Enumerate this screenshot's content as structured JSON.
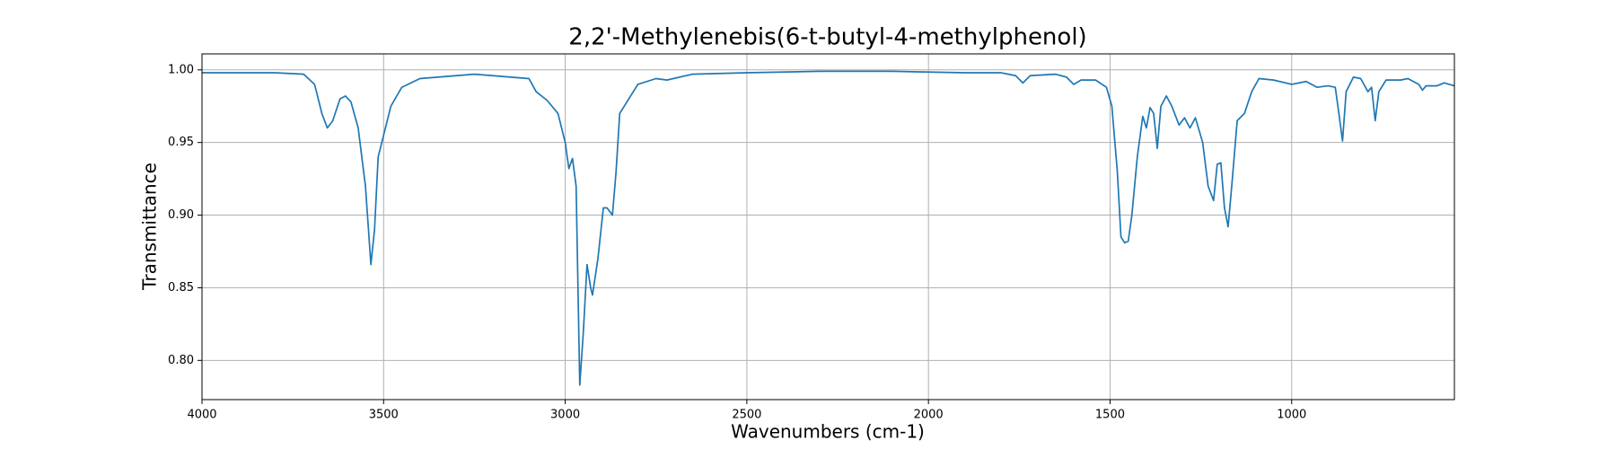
{
  "chart_data": {
    "type": "line",
    "title": "2,2'-Methylenebis(6-t-butyl-4-methylphenol)",
    "xlabel": "Wavenumbers (cm-1)",
    "ylabel": "Transmittance",
    "color": "#1f77b4",
    "grid": true,
    "xlim": [
      4000,
      552
    ],
    "ylim": [
      0.773,
      1.011
    ],
    "xticks": [
      4000,
      3500,
      3000,
      2500,
      2000,
      1500,
      1000
    ],
    "yticks": [
      {
        "value": 0.8,
        "label": "0.80"
      },
      {
        "value": 0.85,
        "label": "0.85"
      },
      {
        "value": 0.9,
        "label": "0.90"
      },
      {
        "value": 0.95,
        "label": "0.95"
      },
      {
        "value": 1.0,
        "label": "1.00"
      }
    ],
    "x": [
      4000,
      3800,
      3720,
      3690,
      3670,
      3655,
      3640,
      3620,
      3605,
      3590,
      3570,
      3550,
      3535,
      3525,
      3515,
      3500,
      3480,
      3450,
      3400,
      3300,
      3250,
      3150,
      3100,
      3080,
      3050,
      3020,
      3000,
      2990,
      2980,
      2970,
      2960,
      2950,
      2940,
      2930,
      2925,
      2910,
      2895,
      2885,
      2870,
      2860,
      2850,
      2800,
      2750,
      2720,
      2650,
      2500,
      2300,
      2100,
      1900,
      1800,
      1760,
      1740,
      1720,
      1650,
      1620,
      1600,
      1580,
      1540,
      1510,
      1495,
      1480,
      1470,
      1460,
      1450,
      1440,
      1425,
      1410,
      1400,
      1390,
      1380,
      1370,
      1360,
      1345,
      1330,
      1310,
      1295,
      1280,
      1265,
      1245,
      1230,
      1215,
      1205,
      1195,
      1185,
      1175,
      1165,
      1150,
      1130,
      1110,
      1090,
      1050,
      1000,
      960,
      930,
      900,
      880,
      870,
      860,
      850,
      830,
      810,
      790,
      780,
      770,
      760,
      740,
      700,
      680,
      650,
      640,
      630,
      600,
      580,
      552
    ],
    "values": [
      0.998,
      0.998,
      0.997,
      0.99,
      0.97,
      0.96,
      0.965,
      0.98,
      0.982,
      0.978,
      0.96,
      0.92,
      0.866,
      0.89,
      0.94,
      0.955,
      0.975,
      0.988,
      0.994,
      0.996,
      0.997,
      0.995,
      0.994,
      0.985,
      0.979,
      0.97,
      0.95,
      0.932,
      0.939,
      0.92,
      0.783,
      0.82,
      0.866,
      0.85,
      0.845,
      0.87,
      0.905,
      0.905,
      0.9,
      0.93,
      0.97,
      0.99,
      0.994,
      0.993,
      0.997,
      0.998,
      0.999,
      0.999,
      0.998,
      0.998,
      0.996,
      0.991,
      0.996,
      0.997,
      0.995,
      0.99,
      0.993,
      0.993,
      0.988,
      0.975,
      0.93,
      0.885,
      0.881,
      0.882,
      0.9,
      0.94,
      0.968,
      0.96,
      0.974,
      0.97,
      0.946,
      0.975,
      0.982,
      0.975,
      0.962,
      0.967,
      0.96,
      0.967,
      0.95,
      0.92,
      0.91,
      0.935,
      0.936,
      0.905,
      0.892,
      0.92,
      0.965,
      0.97,
      0.985,
      0.994,
      0.993,
      0.99,
      0.992,
      0.988,
      0.989,
      0.988,
      0.97,
      0.951,
      0.985,
      0.995,
      0.994,
      0.985,
      0.988,
      0.965,
      0.985,
      0.993,
      0.993,
      0.994,
      0.99,
      0.986,
      0.989,
      0.989,
      0.991,
      0.989
    ]
  }
}
